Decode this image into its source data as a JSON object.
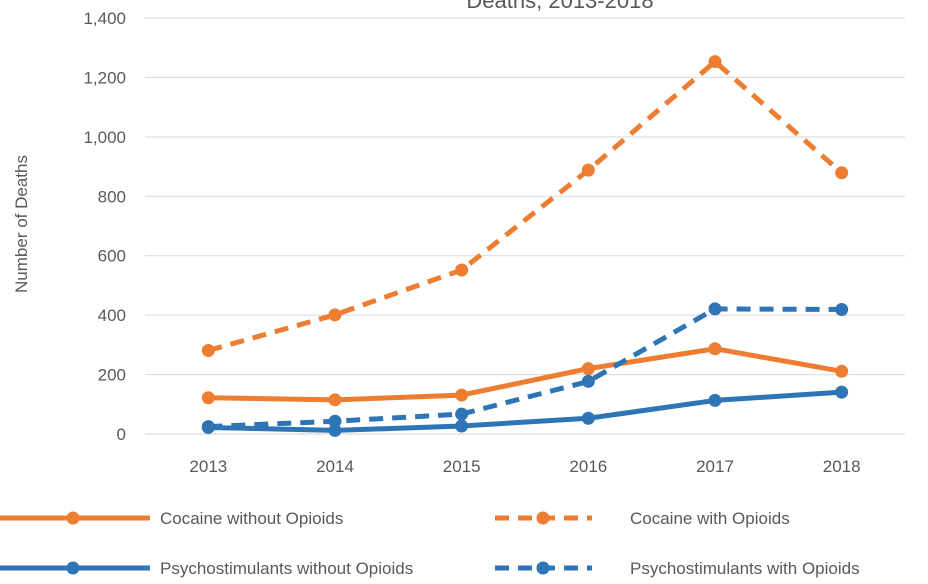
{
  "chart_data": {
    "type": "line",
    "title_fragment": "Deaths, 2013-2018",
    "ylabel": "Number of Deaths",
    "xlabel": "",
    "categories": [
      "2013",
      "2014",
      "2015",
      "2016",
      "2017",
      "2018"
    ],
    "ylim": [
      0,
      1400
    ],
    "yticks": [
      "0",
      "200",
      "400",
      "600",
      "800",
      "1,000",
      "1,200",
      "1,400"
    ],
    "grid": true,
    "legend_position": "bottom",
    "series": [
      {
        "name": "Cocaine without Opioids",
        "values": [
          122,
          115,
          131,
          220,
          287,
          211
        ],
        "color": "#ED7D31",
        "dashed": false
      },
      {
        "name": "Cocaine with Opioids",
        "values": [
          281,
          401,
          552,
          888,
          1253,
          879
        ],
        "color": "#ED7D31",
        "dashed": true
      },
      {
        "name": "Psychostimulants without Opioids",
        "values": [
          22,
          12,
          27,
          53,
          113,
          141
        ],
        "color": "#2E75B6",
        "dashed": false
      },
      {
        "name": "Psychostimulants with Opioids",
        "values": [
          25,
          43,
          67,
          177,
          421,
          419
        ],
        "color": "#2E75B6",
        "dashed": true
      }
    ]
  }
}
